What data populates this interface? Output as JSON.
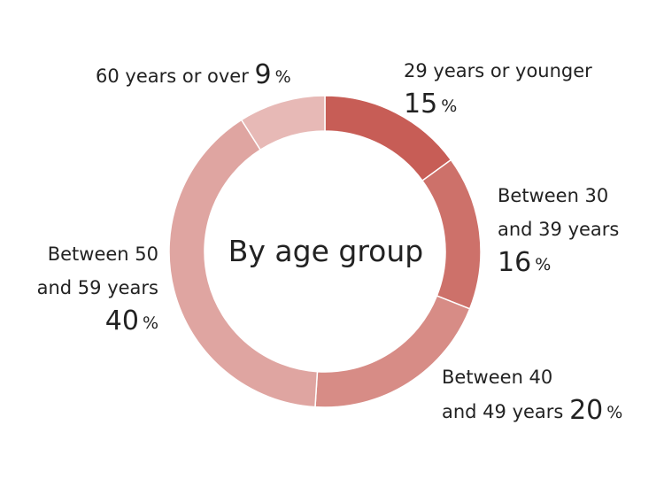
{
  "chart_data": {
    "type": "pie",
    "subtype": "donut",
    "center_label": "By age group",
    "unit": "%",
    "slices": [
      {
        "label_lines": [
          "29 years or younger"
        ],
        "value": 15,
        "color": "#c75d56"
      },
      {
        "label_lines": [
          "Between 30",
          "and 39 years"
        ],
        "value": 16,
        "color": "#cd716a"
      },
      {
        "label_lines": [
          "Between 40",
          "and 49 years"
        ],
        "value": 20,
        "color": "#d78c86"
      },
      {
        "label_lines": [
          "Between 50",
          "and 59 years"
        ],
        "value": 40,
        "color": "#dfa5a1"
      },
      {
        "label_lines": [
          "60 years or over"
        ],
        "value": 9,
        "color": "#e7b9b6"
      }
    ]
  }
}
